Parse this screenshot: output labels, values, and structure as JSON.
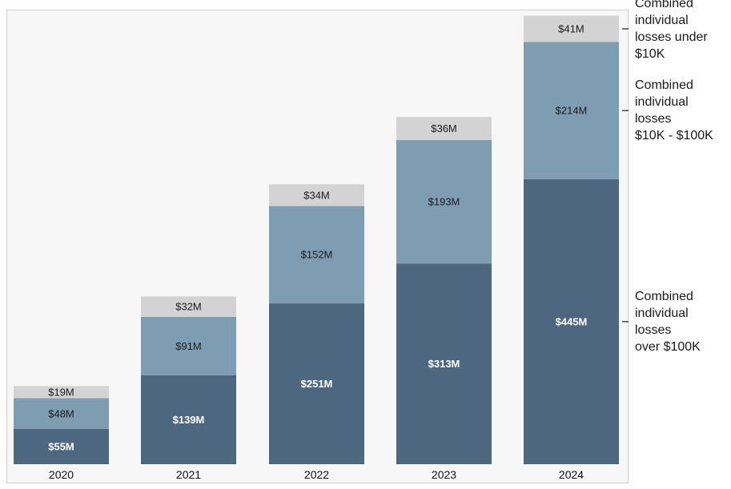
{
  "chart_data": {
    "type": "bar",
    "stacked": true,
    "categories": [
      "2020",
      "2021",
      "2022",
      "2023",
      "2024"
    ],
    "series": [
      {
        "name": "Combined individual losses over $100K",
        "values": [
          55,
          139,
          251,
          313,
          445
        ],
        "labels": [
          "$55M",
          "$139M",
          "$251M",
          "$313M",
          "$445M"
        ],
        "color": "#4e6780"
      },
      {
        "name": "Combined individual losses $10K - $100K",
        "values": [
          48,
          91,
          152,
          193,
          214
        ],
        "labels": [
          "$48M",
          "$91M",
          "$152M",
          "$193M",
          "$214M"
        ],
        "color": "#7f9db2"
      },
      {
        "name": "Combined individual losses under $10K",
        "values": [
          19,
          32,
          34,
          36,
          41
        ],
        "labels": [
          "$19M",
          "$32M",
          "$34M",
          "$36M",
          "$41M"
        ],
        "color": "#d3d3d3"
      }
    ],
    "legend_placement": "right",
    "legend_lines": [
      [
        "Combined",
        "individual",
        "losses under",
        "$10K"
      ],
      [
        "Combined",
        "individual",
        "losses",
        "$10K - $100K"
      ],
      [
        "Combined",
        "individual",
        "losses",
        "over $100K"
      ]
    ],
    "y_axis_visible": false,
    "grid": false
  }
}
